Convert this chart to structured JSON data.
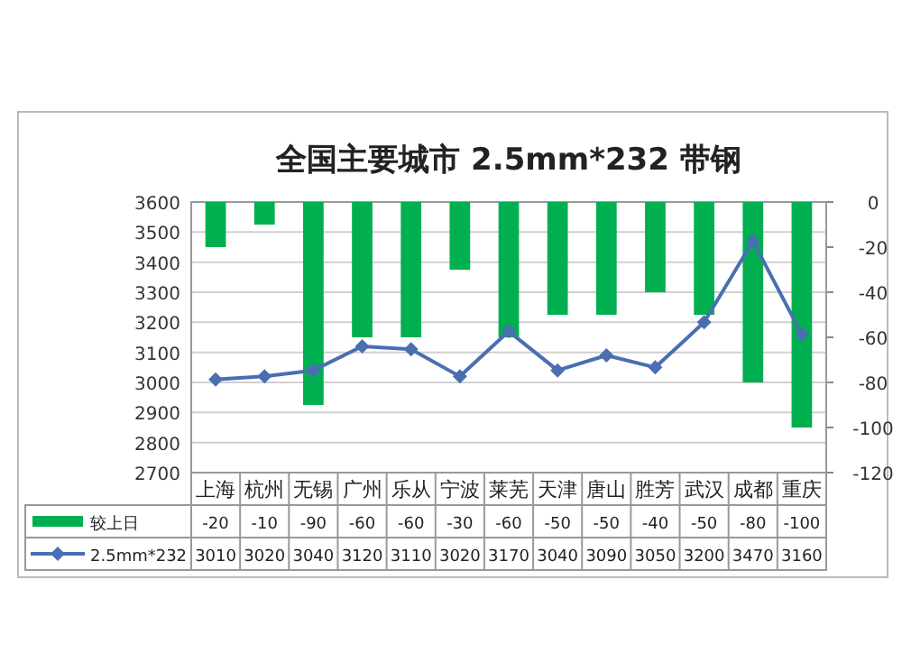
{
  "chart_data": {
    "type": "bar",
    "title": "全国主要城市 2.5mm*232 带钢",
    "categories": [
      "上海",
      "杭州",
      "无锡",
      "广州",
      "乐从",
      "宁波",
      "莱芜",
      "天津",
      "唐山",
      "胜芳",
      "武汉",
      "成都",
      "重庆"
    ],
    "series": [
      {
        "name": "较上日",
        "axis": "y2",
        "color": "#00b050",
        "values": [
          -20,
          -10,
          -90,
          -60,
          -60,
          -30,
          -60,
          -50,
          -50,
          -40,
          -50,
          -80,
          -100
        ]
      },
      {
        "name": "2.5mm*232",
        "type": "line",
        "color": "#4a6fb0",
        "marker": "diamond",
        "values": [
          3010,
          3020,
          3040,
          3120,
          3110,
          3020,
          3170,
          3040,
          3090,
          3050,
          3200,
          3470,
          3160
        ]
      }
    ],
    "ylim": [
      2700,
      3600
    ],
    "yticks": [
      2700,
      2800,
      2900,
      3000,
      3100,
      3200,
      3300,
      3400,
      3500,
      3600
    ],
    "y2lim": [
      -120,
      0
    ],
    "y2ticks": [
      -120,
      -100,
      -80,
      -60,
      -40,
      -20,
      0
    ],
    "grid": "y",
    "legend": "bottom",
    "data_labels": true
  }
}
